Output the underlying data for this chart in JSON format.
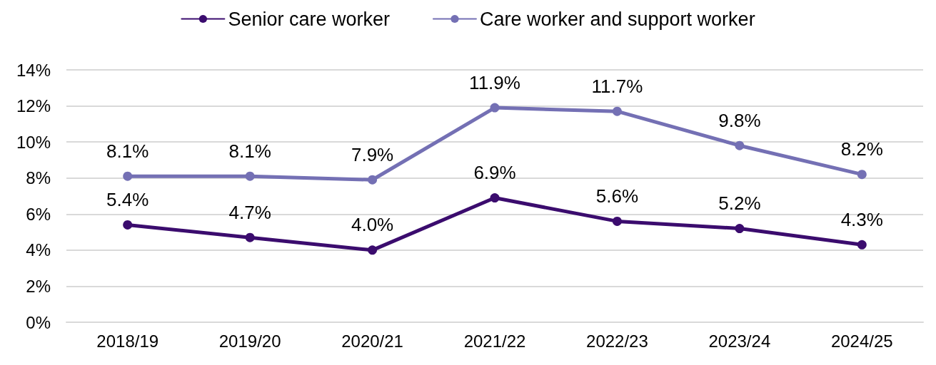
{
  "chart_data": {
    "type": "line",
    "categories": [
      "2018/19",
      "2019/20",
      "2020/21",
      "2021/22",
      "2022/23",
      "2023/24",
      "2024/25"
    ],
    "series": [
      {
        "name": "Senior care worker",
        "color": "#3b0c6e",
        "values": [
          5.4,
          4.7,
          4.0,
          6.9,
          5.6,
          5.2,
          4.3
        ],
        "value_labels": [
          "5.4%",
          "4.7%",
          "4.0%",
          "6.9%",
          "5.6%",
          "5.2%",
          "4.3%"
        ]
      },
      {
        "name": "Care worker and support worker",
        "color": "#7470b4",
        "values": [
          8.1,
          8.1,
          7.9,
          11.9,
          11.7,
          9.8,
          8.2
        ],
        "value_labels": [
          "8.1%",
          "8.1%",
          "7.9%",
          "11.9%",
          "11.7%",
          "9.8%",
          "8.2%"
        ]
      }
    ],
    "ylim": [
      0,
      14
    ],
    "yticks": [
      {
        "value": 0,
        "label": "0%"
      },
      {
        "value": 2,
        "label": "2%"
      },
      {
        "value": 4,
        "label": "4%"
      },
      {
        "value": 6,
        "label": "6%"
      },
      {
        "value": 8,
        "label": "8%"
      },
      {
        "value": 10,
        "label": "10%"
      },
      {
        "value": 12,
        "label": "12%"
      },
      {
        "value": 14,
        "label": "14%"
      }
    ],
    "grid": "y",
    "legend": "top",
    "marker": "circle",
    "line_style": "solid"
  }
}
